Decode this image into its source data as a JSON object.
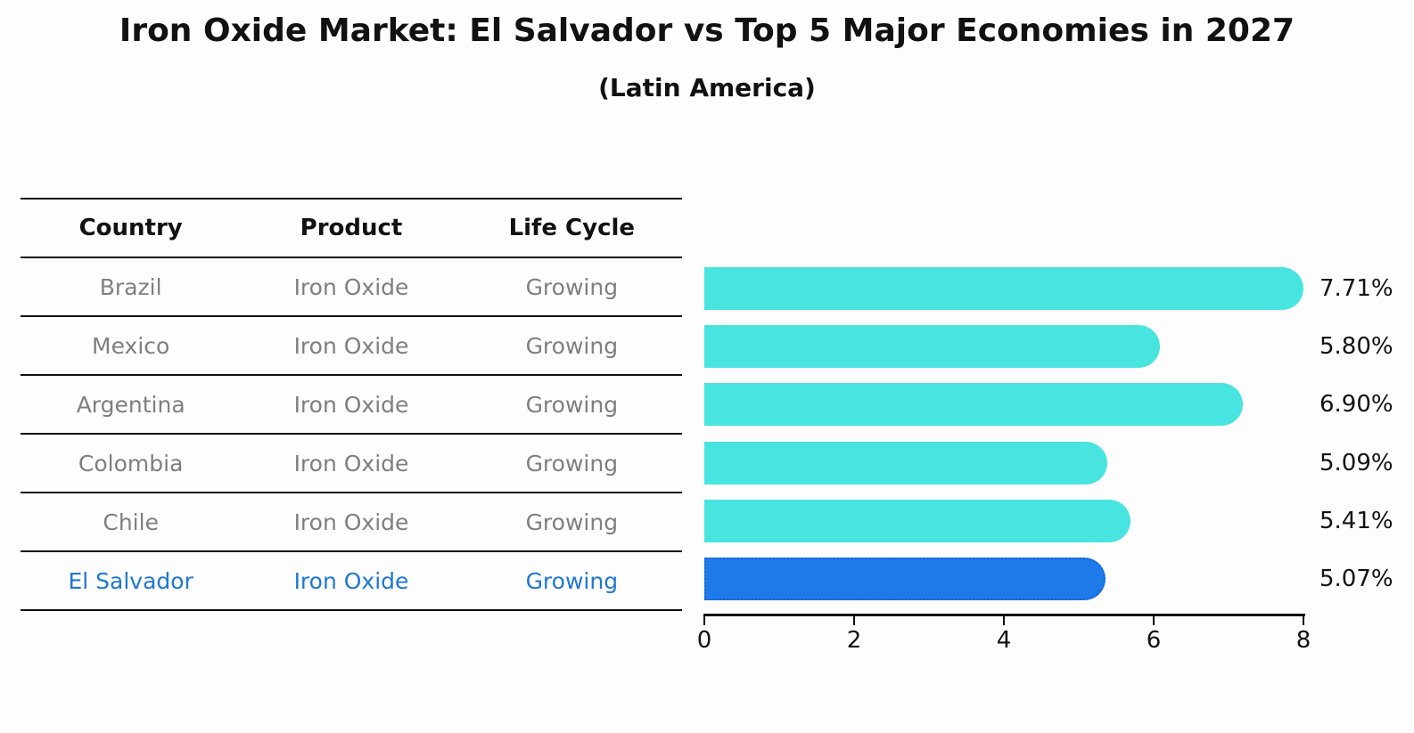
{
  "title": "Iron Oxide Market: El Salvador vs Top 5 Major Economies in 2027",
  "subtitle": "(Latin America)",
  "table": {
    "headers": [
      "Country",
      "Product",
      "Life Cycle"
    ],
    "rows": [
      {
        "country": "Brazil",
        "product": "Iron Oxide",
        "life_cycle": "Growing"
      },
      {
        "country": "Mexico",
        "product": "Iron Oxide",
        "life_cycle": "Growing"
      },
      {
        "country": "Argentina",
        "product": "Iron Oxide",
        "life_cycle": "Growing"
      },
      {
        "country": "Colombia",
        "product": "Iron Oxide",
        "life_cycle": "Growing"
      },
      {
        "country": "Chile",
        "product": "Iron Oxide",
        "life_cycle": "Growing"
      },
      {
        "country": "El Salvador",
        "product": "Iron Oxide",
        "life_cycle": "Growing"
      }
    ],
    "highlight_row": 5
  },
  "chart_data": {
    "type": "bar",
    "orientation": "horizontal",
    "categories": [
      "Brazil",
      "Mexico",
      "Argentina",
      "Colombia",
      "Chile",
      "El Salvador"
    ],
    "values": [
      7.71,
      5.8,
      6.9,
      5.09,
      5.41,
      5.07
    ],
    "value_labels": [
      "7.71%",
      "5.80%",
      "6.90%",
      "5.09%",
      "5.41%",
      "5.07%"
    ],
    "xlim": [
      0,
      8
    ],
    "xticks": [
      "0",
      "2",
      "4",
      "6",
      "8"
    ],
    "xtick_values": [
      0,
      2,
      4,
      6,
      8
    ],
    "grid": false,
    "legend_position": "none",
    "bar_color": "#48E4E0",
    "highlight_index": 5,
    "highlight_color": "#1E7AE8",
    "highlight_border_color": "#1565D8",
    "value_label_color": "#111111",
    "axis_color": "#111111"
  },
  "colors": {
    "background": "#fdfdfd",
    "header_text": "#111111",
    "row_text": "#7f7f7f",
    "highlight_text": "#1E78D2",
    "table_line": "#111111"
  }
}
